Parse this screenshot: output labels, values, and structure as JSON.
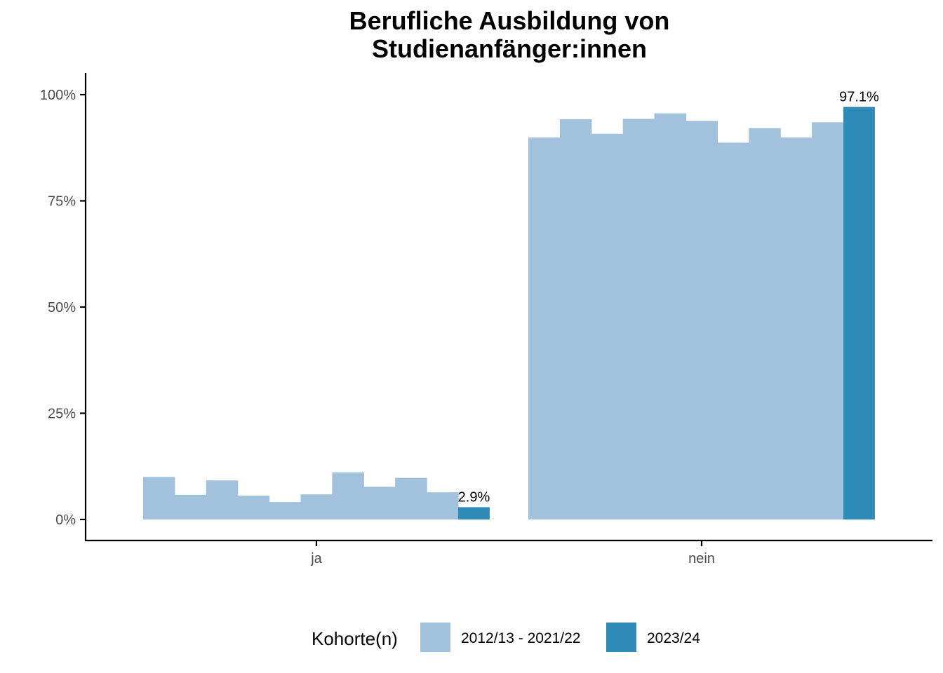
{
  "chart_data": {
    "type": "bar",
    "title_lines": [
      "Berufliche Ausbildung von",
      "Studienanfänger:innen"
    ],
    "categories": [
      "ja",
      "nein"
    ],
    "ylim": [
      0,
      1.05
    ],
    "y_ticks": [
      {
        "value": 0,
        "label": "0%"
      },
      {
        "value": 0.25,
        "label": "25%"
      },
      {
        "value": 0.5,
        "label": "50%"
      },
      {
        "value": 0.75,
        "label": "75%"
      },
      {
        "value": 1.0,
        "label": "100%"
      }
    ],
    "historic": {
      "ja": [
        0.1,
        0.058,
        0.092,
        0.056,
        0.041,
        0.059,
        0.111,
        0.077,
        0.098,
        0.064
      ],
      "nein": [
        0.899,
        0.942,
        0.908,
        0.943,
        0.956,
        0.938,
        0.887,
        0.921,
        0.899,
        0.935
      ]
    },
    "current": {
      "ja": 0.029,
      "nein": 0.971
    },
    "current_labels": {
      "ja": "2.9%",
      "nein": "97.1%"
    },
    "legend": {
      "title": "Kohorte(n)",
      "entries": [
        {
          "label": "2012/13 - 2021/22",
          "color": "#a1c1dc"
        },
        {
          "label": "2023/24",
          "color": "#2e8bb8"
        }
      ],
      "position": "bottom"
    },
    "colors": {
      "historic": "#a1c1dc",
      "current": "#2e8bb8"
    },
    "grid": false
  }
}
